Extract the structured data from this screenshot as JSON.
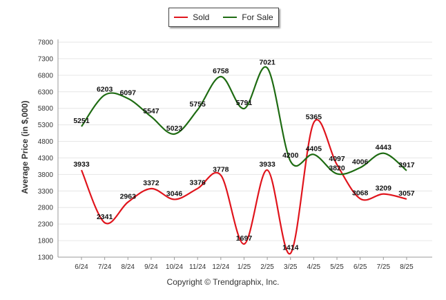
{
  "chart_data": {
    "type": "line",
    "ylabel": "Average Price (in $,000)",
    "xlabel": "",
    "categories": [
      "6/24",
      "7/24",
      "8/24",
      "9/24",
      "10/24",
      "11/24",
      "12/24",
      "1/25",
      "2/25",
      "3/25",
      "4/25",
      "5/25",
      "6/25",
      "7/25",
      "8/25"
    ],
    "yticks": [
      1300,
      1800,
      2300,
      2800,
      3300,
      3800,
      4300,
      4800,
      5300,
      5800,
      6300,
      6800,
      7300,
      7800
    ],
    "ylim": [
      1300,
      7800
    ],
    "grid": true,
    "legend_position": "top",
    "series": [
      {
        "name": "Sold",
        "color": "#e0141c",
        "values": [
          3933,
          2341,
          2963,
          3372,
          3046,
          3376,
          3778,
          1697,
          3933,
          1414,
          5365,
          4097,
          3068,
          3209,
          3057
        ]
      },
      {
        "name": "For Sale",
        "color": "#1e6b12",
        "values": [
          5251,
          6203,
          6097,
          5547,
          5023,
          5755,
          6758,
          5791,
          7021,
          4200,
          4405,
          3820,
          4006,
          4443,
          3917
        ]
      }
    ]
  },
  "footer": {
    "credit": "Copyright © Trendgraphix, Inc."
  }
}
